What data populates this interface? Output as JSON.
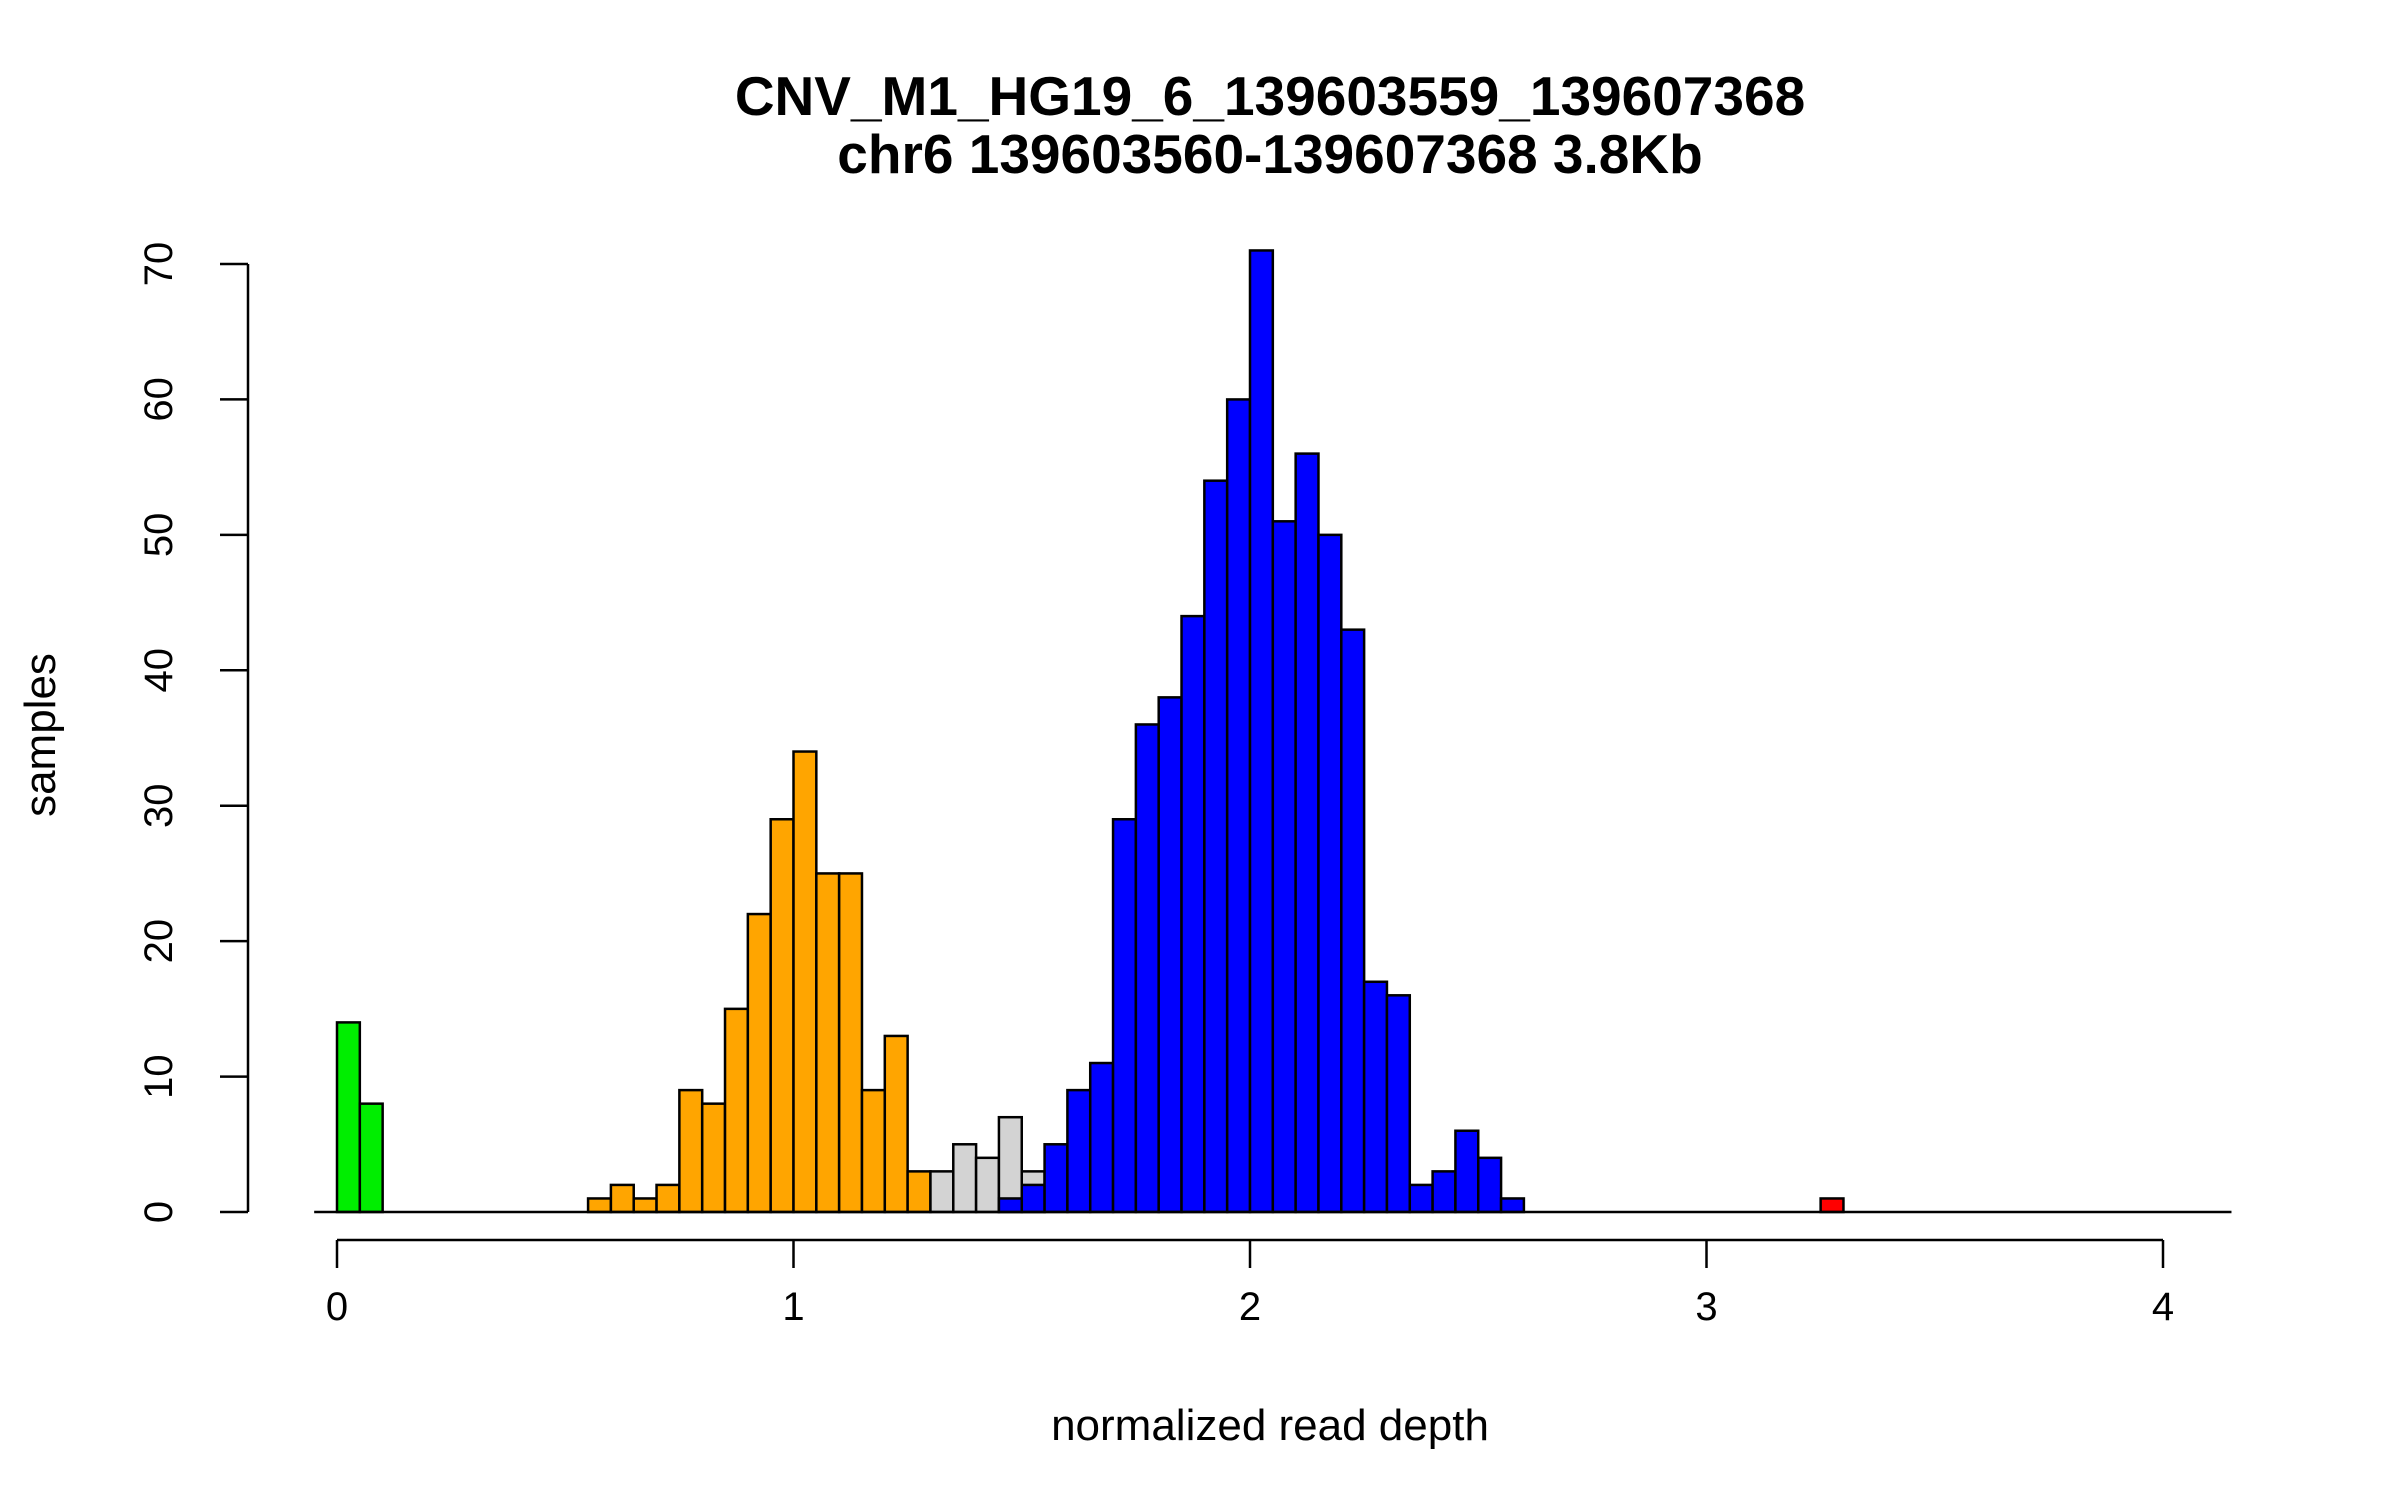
{
  "chart_data": {
    "type": "bar",
    "title": "CNV_M1_HG19_6_139603559_139607368",
    "subtitle": "chr6 139603560-139607368 3.8Kb",
    "xlabel": "normalized read depth",
    "ylabel": "samples",
    "xlim": [
      -0.05,
      4.15
    ],
    "ylim": [
      0,
      70
    ],
    "bin_width": 0.05,
    "x_ticks": [
      0,
      1,
      2,
      3,
      4
    ],
    "y_ticks": [
      0,
      10,
      20,
      30,
      40,
      50,
      60,
      70
    ],
    "colors": {
      "green": "#00ee00",
      "orange": "#ffa500",
      "gray": "#d3d3d3",
      "blue": "#0000ff",
      "red": "#ff0000"
    },
    "series": [
      {
        "name": "green",
        "color": "#00ee00",
        "bins": [
          [
            0.0,
            14
          ],
          [
            0.05,
            8
          ]
        ]
      },
      {
        "name": "orange",
        "color": "#ffa500",
        "bins": [
          [
            0.55,
            1
          ],
          [
            0.6,
            2
          ],
          [
            0.65,
            1
          ],
          [
            0.7,
            2
          ],
          [
            0.75,
            9
          ],
          [
            0.8,
            8
          ],
          [
            0.85,
            15
          ],
          [
            0.9,
            22
          ],
          [
            0.95,
            29
          ],
          [
            1.0,
            34
          ],
          [
            1.05,
            25
          ],
          [
            1.1,
            25
          ],
          [
            1.15,
            9
          ],
          [
            1.2,
            13
          ],
          [
            1.25,
            3
          ]
        ]
      },
      {
        "name": "gray",
        "color": "#d3d3d3",
        "bins": [
          [
            1.3,
            3
          ],
          [
            1.35,
            5
          ],
          [
            1.4,
            4
          ],
          [
            1.45,
            7
          ],
          [
            1.5,
            3
          ]
        ]
      },
      {
        "name": "blue",
        "color": "#0000ff",
        "bins": [
          [
            1.45,
            1
          ],
          [
            1.5,
            2
          ],
          [
            1.55,
            5
          ],
          [
            1.6,
            9
          ],
          [
            1.65,
            11
          ],
          [
            1.7,
            29
          ],
          [
            1.75,
            36
          ],
          [
            1.8,
            38
          ],
          [
            1.85,
            44
          ],
          [
            1.9,
            54
          ],
          [
            1.95,
            60
          ],
          [
            2.0,
            71
          ],
          [
            2.05,
            51
          ],
          [
            2.1,
            56
          ],
          [
            2.15,
            50
          ],
          [
            2.2,
            43
          ],
          [
            2.25,
            17
          ],
          [
            2.3,
            16
          ],
          [
            2.35,
            2
          ],
          [
            2.4,
            3
          ],
          [
            2.45,
            6
          ],
          [
            2.5,
            4
          ],
          [
            2.55,
            1
          ]
        ]
      },
      {
        "name": "red",
        "color": "#ff0000",
        "bins": [
          [
            3.25,
            1
          ]
        ]
      }
    ]
  }
}
